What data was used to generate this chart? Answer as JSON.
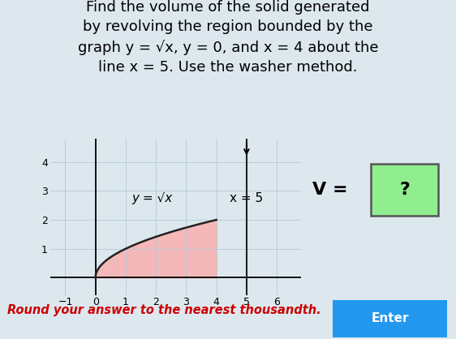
{
  "title_lines": [
    "Find the volume of the solid generated",
    "by revolving the region bounded by the",
    "graph y = √x, y = 0, and x = 4 about the",
    "line x = 5. Use the washer method."
  ],
  "xlim": [
    -1.5,
    6.8
  ],
  "ylim": [
    -0.6,
    4.8
  ],
  "xticks": [
    -1,
    0,
    1,
    2,
    3,
    4,
    5,
    6
  ],
  "yticks": [
    1,
    2,
    3,
    4
  ],
  "curve_color": "#222222",
  "fill_color": "#f5b8b8",
  "vline_x": 5,
  "vline_color": "#222222",
  "curve_label": "y = √x",
  "vline_label": "x = 5",
  "v_label": "V = ",
  "q_mark": "?",
  "v_box_bg": "#90ee90",
  "v_box_border": "#555555",
  "bottom_text": "Round your answer to the nearest thousandth.",
  "bottom_text_color": "#cc0000",
  "enter_button_text": "Enter",
  "enter_button_bg": "#2299ee",
  "enter_button_text_color": "#ffffff",
  "bg_color": "#dde8ee",
  "grid_color": "#b0c8d8",
  "title_fontsize": 13.0,
  "label_fontsize": 11,
  "tick_fontsize": 9
}
